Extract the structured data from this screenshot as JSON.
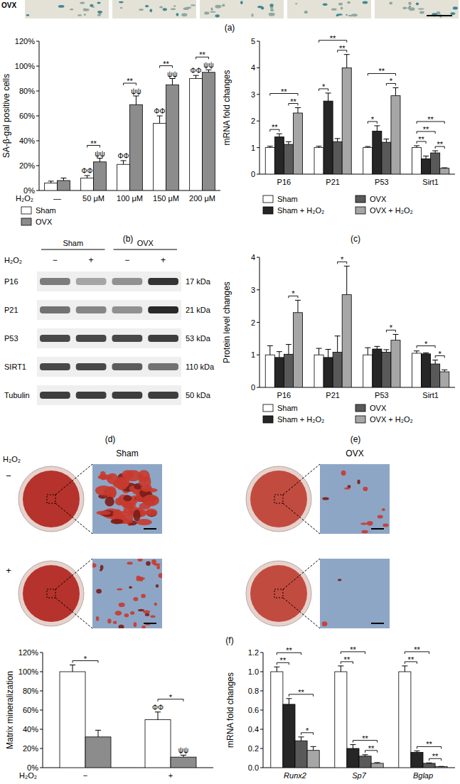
{
  "chart_data": [
    {
      "panel_label": "(b)",
      "type": "bar",
      "y_label": "SA-β-gal positive cells",
      "x_label": "H₂O₂",
      "categories": [
        "—",
        "50 μM",
        "100 μM",
        "150 μM",
        "200 μM"
      ],
      "series": [
        {
          "name": "Sham",
          "color": "#ffffff",
          "values": [
            6,
            10,
            21,
            54,
            90
          ],
          "errors": [
            1.5,
            2,
            3,
            6,
            2.5
          ]
        },
        {
          "name": "OVX",
          "color": "#8c8c8c",
          "values": [
            8,
            23,
            69,
            85,
            95
          ],
          "errors": [
            2,
            3,
            7,
            5,
            2
          ]
        }
      ],
      "ylim": [
        0,
        120
      ],
      "yticks": [
        {
          "value": 0,
          "label": "0%"
        },
        {
          "value": 20,
          "label": "20%"
        },
        {
          "value": 40,
          "label": "40%"
        },
        {
          "value": 60,
          "label": "60%"
        },
        {
          "value": 80,
          "label": "80%"
        },
        {
          "value": 100,
          "label": "100%"
        },
        {
          "value": 120,
          "label": "120%"
        }
      ],
      "legend": "bottom",
      "annotations": {
        "symbols": [
          {
            "category": 1,
            "series": 0,
            "label": "ΦΦ"
          },
          {
            "category": 2,
            "series": 0,
            "label": "ΦΦ"
          },
          {
            "category": 3,
            "series": 0,
            "label": "ΦΦ"
          },
          {
            "category": 4,
            "series": 0,
            "label": "ΦΦ"
          },
          {
            "category": 1,
            "series": 1,
            "label": "ψψ"
          },
          {
            "category": 2,
            "series": 1,
            "label": "ψψ"
          },
          {
            "category": 3,
            "series": 1,
            "label": "ψψ"
          },
          {
            "category": 4,
            "series": 1,
            "label": "ψψ"
          }
        ],
        "brackets": [
          {
            "category": 1,
            "from": 0,
            "to": 1,
            "label": "**"
          },
          {
            "category": 2,
            "from": 0,
            "to": 1,
            "label": "**"
          },
          {
            "category": 3,
            "from": 0,
            "to": 1,
            "label": "**"
          },
          {
            "category": 4,
            "from": 0,
            "to": 1,
            "label": "**"
          }
        ]
      }
    },
    {
      "panel_label": "(c)",
      "type": "bar",
      "y_label": "mRNA fold changes",
      "categories": [
        "P16",
        "P21",
        "P53",
        "Sirt1"
      ],
      "series": [
        {
          "name": "Sham",
          "color": "#ffffff",
          "values": [
            1.0,
            1.0,
            1.0,
            1.0
          ],
          "errors": [
            0.05,
            0.05,
            0.04,
            0.07
          ]
        },
        {
          "name": "Sham + H₂O₂",
          "color": "#262626",
          "values": [
            1.4,
            2.75,
            1.62,
            0.58
          ],
          "errors": [
            0.12,
            0.3,
            0.2,
            0.1
          ]
        },
        {
          "name": "OVX",
          "color": "#595959",
          "values": [
            1.12,
            1.22,
            1.2,
            0.8
          ],
          "errors": [
            0.1,
            0.12,
            0.12,
            0.08
          ]
        },
        {
          "name": "OVX + H₂O₂",
          "color": "#a6a6a6",
          "values": [
            2.3,
            4.0,
            2.95,
            0.22
          ],
          "errors": [
            0.2,
            0.5,
            0.3,
            0.02
          ]
        }
      ],
      "ylim": [
        0,
        5
      ],
      "yticks": [
        0,
        1,
        2,
        3,
        4,
        5
      ],
      "legend": "bottom",
      "annotations": {
        "symbols": [],
        "brackets": [
          {
            "category": 0,
            "from": 0,
            "to": 1,
            "label": "**"
          },
          {
            "category": 0,
            "from": 2,
            "to": 3,
            "label": "**"
          },
          {
            "category": 0,
            "from": 0,
            "to": 3,
            "label": "**"
          },
          {
            "category": 1,
            "from": 0,
            "to": 1,
            "label": "*"
          },
          {
            "category": 1,
            "from": 2,
            "to": 3,
            "label": "**"
          },
          {
            "category": 1,
            "from": 0,
            "to": 3,
            "label": "**"
          },
          {
            "category": 2,
            "from": 0,
            "to": 1,
            "label": "*"
          },
          {
            "category": 2,
            "from": 2,
            "to": 3,
            "label": "*"
          },
          {
            "category": 2,
            "from": 0,
            "to": 3,
            "label": "**"
          },
          {
            "category": 3,
            "from": 0,
            "to": 1,
            "label": "**"
          },
          {
            "category": 3,
            "from": 2,
            "to": 3,
            "label": "**"
          },
          {
            "category": 3,
            "from": 0,
            "to": 2,
            "label": "**"
          },
          {
            "category": 3,
            "from": 0,
            "to": 3,
            "label": "**"
          }
        ]
      }
    },
    {
      "panel_label": "(e)",
      "type": "bar",
      "y_label": "Protein level changes",
      "categories": [
        "P16",
        "P21",
        "P53",
        "Sirt1"
      ],
      "series": [
        {
          "name": "Sham",
          "color": "#ffffff",
          "values": [
            1.0,
            1.0,
            1.0,
            1.05
          ],
          "errors": [
            0.28,
            0.2,
            0.22,
            0.07
          ]
        },
        {
          "name": "Sham + H₂O₂",
          "color": "#262626",
          "values": [
            0.92,
            0.92,
            1.18,
            1.03
          ],
          "errors": [
            0.18,
            0.25,
            0.08,
            0.03
          ]
        },
        {
          "name": "OVX",
          "color": "#595959",
          "values": [
            1.02,
            1.08,
            1.08,
            0.72
          ],
          "errors": [
            0.3,
            0.5,
            0.08,
            0.12
          ]
        },
        {
          "name": "OVX + H₂O₂",
          "color": "#a6a6a6",
          "values": [
            2.3,
            2.85,
            1.45,
            0.48
          ],
          "errors": [
            0.38,
            0.88,
            0.18,
            0.06
          ]
        }
      ],
      "ylim": [
        0,
        4
      ],
      "yticks": [
        0,
        1,
        2,
        3,
        4
      ],
      "legend": "bottom",
      "annotations": {
        "symbols": [],
        "brackets": [
          {
            "category": 0,
            "from": 2,
            "to": 3,
            "label": "*"
          },
          {
            "category": 1,
            "from": 2,
            "to": 3,
            "label": "*"
          },
          {
            "category": 2,
            "from": 2,
            "to": 3,
            "label": "*"
          },
          {
            "category": 3,
            "from": 2,
            "to": 3,
            "label": "*"
          },
          {
            "category": 3,
            "from": 0,
            "to": 2,
            "label": "*"
          }
        ]
      }
    },
    {
      "type": "bar",
      "y_label": "Matrix mineralization",
      "x_label": "H₂O₂",
      "categories": [
        "−",
        "+"
      ],
      "series": [
        {
          "name": "Sham",
          "color": "#ffffff",
          "values": [
            100,
            50
          ],
          "errors": [
            7,
            8
          ]
        },
        {
          "name": "OVX",
          "color": "#8c8c8c",
          "values": [
            32,
            11
          ],
          "errors": [
            7,
            2
          ]
        }
      ],
      "ylim": [
        0,
        120
      ],
      "yticks": [
        {
          "value": 0,
          "label": "0%"
        },
        {
          "value": 20,
          "label": "20%"
        },
        {
          "value": 40,
          "label": "40%"
        },
        {
          "value": 60,
          "label": "60%"
        },
        {
          "value": 80,
          "label": "80%"
        },
        {
          "value": 100,
          "label": "100%"
        },
        {
          "value": 120,
          "label": "120%"
        }
      ],
      "annotations": {
        "symbols": [
          {
            "category": 1,
            "series": 0,
            "label": "ΦΦ"
          },
          {
            "category": 1,
            "series": 1,
            "label": "ψψ"
          }
        ],
        "brackets": [
          {
            "category": 0,
            "from": 0,
            "to": 1,
            "label": "*"
          },
          {
            "category": 1,
            "from": 0,
            "to": 1,
            "label": "*"
          }
        ]
      }
    },
    {
      "type": "bar",
      "y_label": "mRNA fold changes",
      "categories": [
        "Runx2",
        "Sp7",
        "Bglap"
      ],
      "series": [
        {
          "color": "#ffffff",
          "values": [
            1.0,
            1.0,
            1.0
          ],
          "errors": [
            0.05,
            0.06,
            0.06
          ]
        },
        {
          "color": "#262626",
          "values": [
            0.66,
            0.2,
            0.16
          ],
          "errors": [
            0.06,
            0.04,
            0.015
          ]
        },
        {
          "color": "#595959",
          "values": [
            0.28,
            0.12,
            0.045
          ],
          "errors": [
            0.04,
            0.015,
            0.005
          ]
        },
        {
          "color": "#a6a6a6",
          "values": [
            0.18,
            0.045,
            0.01
          ],
          "errors": [
            0.04,
            0.008,
            0.003
          ]
        }
      ],
      "ylim": [
        0,
        1.2
      ],
      "yticks": [
        {
          "value": 0,
          "label": "0.0"
        },
        0.2,
        0.4,
        0.6,
        0.8,
        {
          "value": 1,
          "label": "1.0"
        },
        1.2
      ],
      "annotations": {
        "symbols": [],
        "brackets": [
          {
            "category": 0,
            "from": 2,
            "to": 3,
            "label": "*"
          },
          {
            "category": 0,
            "from": 1,
            "to": 3,
            "label": "**"
          },
          {
            "category": 0,
            "from": 0,
            "to": 1,
            "label": "**"
          },
          {
            "category": 0,
            "from": 0,
            "to": 2,
            "label": "**"
          },
          {
            "category": 1,
            "from": 2,
            "to": 3,
            "label": "**"
          },
          {
            "category": 1,
            "from": 1,
            "to": 3,
            "label": "**"
          },
          {
            "category": 1,
            "from": 0,
            "to": 1,
            "label": "**"
          },
          {
            "category": 1,
            "from": 0,
            "to": 2,
            "label": "**"
          },
          {
            "category": 2,
            "from": 2,
            "to": 3,
            "label": "**"
          },
          {
            "category": 2,
            "from": 1,
            "to": 3,
            "label": "**"
          },
          {
            "category": 2,
            "from": 0,
            "to": 1,
            "label": "**"
          },
          {
            "category": 2,
            "from": 0,
            "to": 2,
            "label": "**"
          }
        ]
      }
    }
  ],
  "image_strip": {
    "panel_label": "(a)",
    "label": "OVX"
  },
  "blot": {
    "panel_label": "(d)",
    "treatment_label": "H₂O₂",
    "groups": [
      "Sham",
      "OVX"
    ],
    "treatments": [
      "−",
      "+",
      "−",
      "+"
    ],
    "rows": [
      {
        "name": "P16",
        "size": "17 kDa"
      },
      {
        "name": "P21",
        "size": "21 kDa"
      },
      {
        "name": "P53",
        "size": "53 kDa"
      },
      {
        "name": "SIRT1",
        "size": "110 kDa"
      },
      {
        "name": "Tubulin",
        "size": "50 kDa"
      }
    ]
  },
  "staining": {
    "panel_label": "(f)",
    "treatment_label": "H₂O₂",
    "groups": [
      "Sham",
      "OVX"
    ],
    "treatments": [
      "−",
      "+"
    ]
  }
}
